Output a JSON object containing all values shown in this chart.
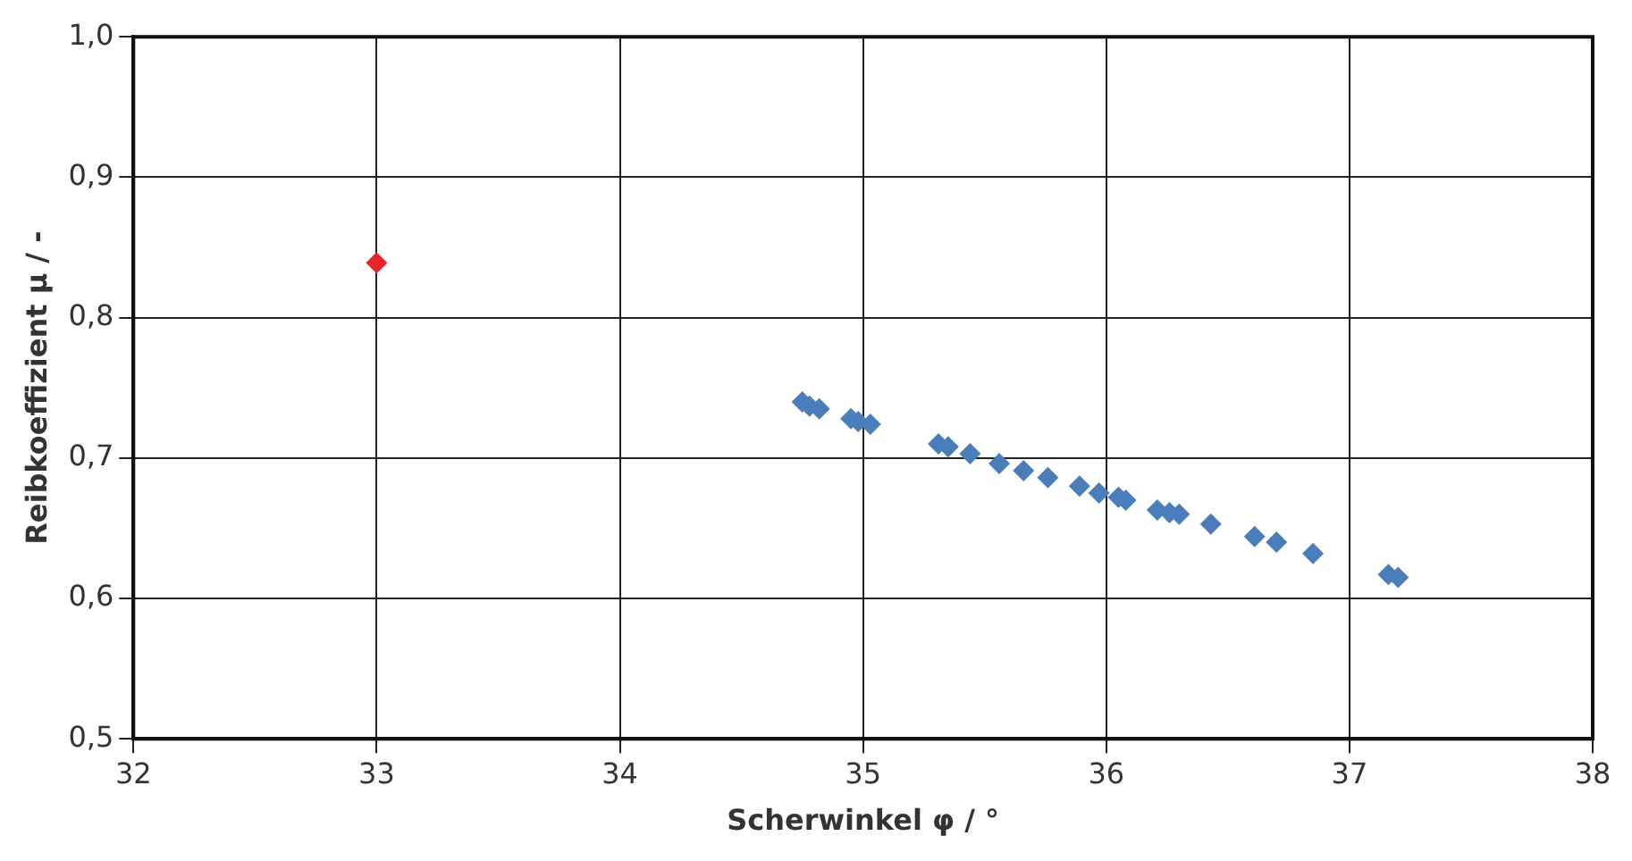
{
  "chart_data": {
    "type": "scatter",
    "xlabel": "Scherwinkel φ / °",
    "ylabel": "Reibkoeffizient μ / -",
    "xlim": [
      32,
      38
    ],
    "xticks": [
      32,
      33,
      34,
      35,
      36,
      37,
      38
    ],
    "ylim": [
      0.5,
      1.0
    ],
    "yticks": [
      {
        "value": 0.5,
        "label": "0,5"
      },
      {
        "value": 0.6,
        "label": "0,6"
      },
      {
        "value": 0.7,
        "label": "0,7"
      },
      {
        "value": 0.8,
        "label": "0,8"
      },
      {
        "value": 0.9,
        "label": "0,9"
      },
      {
        "value": 1.0,
        "label": "1,0"
      }
    ],
    "grid": true,
    "legend": false,
    "marker": "diamond",
    "series": [
      {
        "color": "#4a7ebb",
        "x": [
          34.75,
          34.78,
          34.82,
          34.95,
          34.98,
          35.03,
          35.31,
          35.35,
          35.44,
          35.56,
          35.66,
          35.76,
          35.89,
          35.97,
          36.05,
          36.08,
          36.21,
          36.26,
          36.3,
          36.43,
          36.61,
          36.7,
          36.85,
          37.16,
          37.2
        ],
        "values": [
          0.74,
          0.737,
          0.735,
          0.728,
          0.726,
          0.724,
          0.71,
          0.708,
          0.703,
          0.696,
          0.691,
          0.686,
          0.68,
          0.675,
          0.672,
          0.67,
          0.663,
          0.661,
          0.66,
          0.653,
          0.644,
          0.64,
          0.632,
          0.617,
          0.615
        ]
      },
      {
        "color": "#e8242a",
        "x": [
          33
        ],
        "values": [
          0.839
        ]
      }
    ]
  }
}
